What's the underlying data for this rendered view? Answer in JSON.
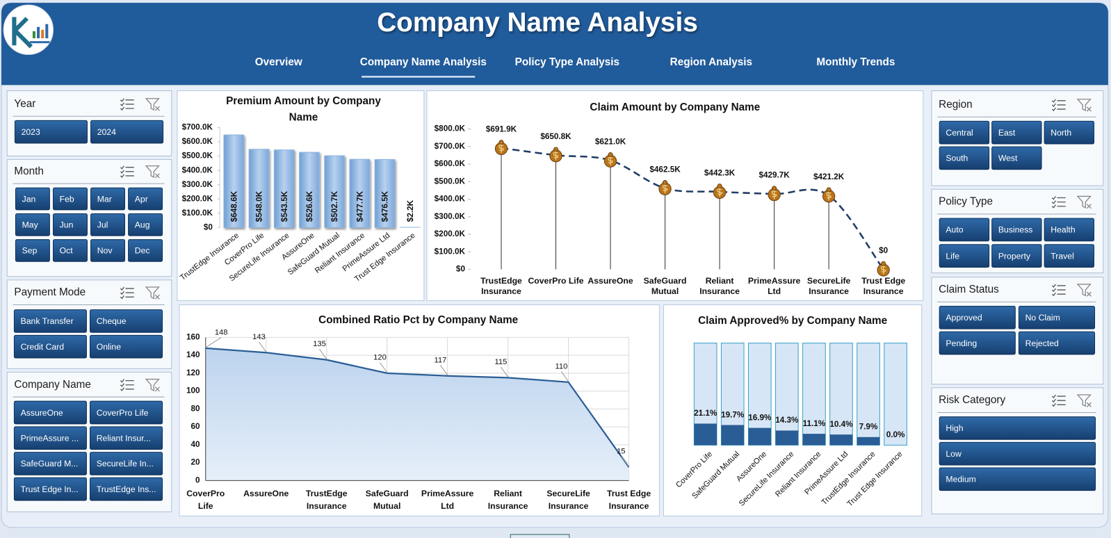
{
  "header": {
    "title": "Company Name Analysis",
    "nav": [
      "Overview",
      "Company Name Analysis",
      "Policy Type Analysis",
      "Region Analysis",
      "Monthly Trends"
    ]
  },
  "slicers": [
    {
      "title": "Year",
      "items": [
        "2023",
        "2024"
      ]
    },
    {
      "title": "Month",
      "items": [
        "Jan",
        "Feb",
        "Mar",
        "Apr",
        "May",
        "Jun",
        "Jul",
        "Aug",
        "Sep",
        "Oct",
        "Nov",
        "Dec"
      ]
    },
    {
      "title": "Payment Mode",
      "items": [
        "Bank Transfer",
        "Cheque",
        "Credit Card",
        "Online"
      ]
    },
    {
      "title": "Company Name",
      "items": [
        "AssureOne",
        "CoverPro Life",
        "PrimeAssure ...",
        "Reliant Insur...",
        "SafeGuard M...",
        "SecureLife In...",
        "Trust Edge In...",
        "TrustEdge Ins..."
      ]
    },
    {
      "title": "Region",
      "items": [
        "Central",
        "East",
        "North",
        "South",
        "West"
      ]
    },
    {
      "title": "Policy Type",
      "items": [
        "Auto",
        "Business",
        "Health",
        "Life",
        "Property",
        "Travel"
      ]
    },
    {
      "title": "Claim Status",
      "items": [
        "Approved",
        "No Claim",
        "Pending",
        "Rejected"
      ]
    },
    {
      "title": "Risk Category",
      "items": [
        "High",
        "Low",
        "Medium"
      ]
    }
  ],
  "chart_data": [
    {
      "type": "bar",
      "title": "Premium Amount by Company Name",
      "categories": [
        "TrustEdge Insurance",
        "CoverPro Life",
        "SecureLife Insurance",
        "AssureOne",
        "SafeGuard Mutual",
        "Reliant Insurance",
        "PrimeAssure Ltd",
        "Trust Edge Insurance"
      ],
      "values": [
        648600,
        548000,
        543500,
        526600,
        502700,
        477700,
        476500,
        2200
      ],
      "value_labels": [
        "$648.6K",
        "$548.0K",
        "$543.5K",
        "$526.6K",
        "$502.7K",
        "$477.7K",
        "$476.5K",
        "$2.2K"
      ],
      "color": "#8db4e2",
      "ylim": [
        0,
        700000
      ],
      "yticks": [
        {
          "value": 0,
          "label": "$0"
        },
        {
          "value": 100000,
          "label": "$100.0K"
        },
        {
          "value": 200000,
          "label": "$200.0K"
        },
        {
          "value": 300000,
          "label": "$300.0K"
        },
        {
          "value": 400000,
          "label": "$400.0K"
        },
        {
          "value": 500000,
          "label": "$500.0K"
        },
        {
          "value": 600000,
          "label": "$600.0K"
        },
        {
          "value": 700000,
          "label": "$700.0K"
        }
      ]
    },
    {
      "type": "line",
      "title": "Claim Amount by Company Name",
      "categories": [
        "TrustEdge Insurance",
        "CoverPro Life",
        "AssureOne",
        "SafeGuard Mutual",
        "Reliant Insurance",
        "PrimeAssure Ltd",
        "SecureLife Insurance",
        "Trust Edge Insurance"
      ],
      "values": [
        691900,
        650800,
        621000,
        462500,
        442300,
        429700,
        421200,
        0
      ],
      "value_labels": [
        "$691.9K",
        "$650.8K",
        "$621.0K",
        "$462.5K",
        "$442.3K",
        "$429.7K",
        "$421.2K",
        "$0"
      ],
      "color": "#1f3d66",
      "marker_color": "#b8741c",
      "ylim": [
        0,
        800000
      ],
      "yticks": [
        {
          "value": 0,
          "label": "$0"
        },
        {
          "value": 100000,
          "label": "$100.0K"
        },
        {
          "value": 200000,
          "label": "$200.0K"
        },
        {
          "value": 300000,
          "label": "$300.0K"
        },
        {
          "value": 400000,
          "label": "$400.0K"
        },
        {
          "value": 500000,
          "label": "$500.0K"
        },
        {
          "value": 600000,
          "label": "$600.0K"
        },
        {
          "value": 700000,
          "label": "$700.0K"
        },
        {
          "value": 800000,
          "label": "$800.0K"
        }
      ]
    },
    {
      "type": "area",
      "title": "Combined Ratio Pct by Company Name",
      "categories": [
        "CoverPro Life",
        "AssureOne",
        "TrustEdge Insurance",
        "SafeGuard Mutual",
        "PrimeAssure Ltd",
        "Reliant Insurance",
        "SecureLife Insurance",
        "Trust Edge Insurance"
      ],
      "values": [
        148,
        143,
        135,
        120,
        117,
        115,
        110,
        15
      ],
      "color": "#2a5d95",
      "ylim": [
        0,
        160
      ],
      "yticks": [
        0,
        20,
        40,
        60,
        80,
        100,
        120,
        140,
        160
      ],
      "grid": true
    },
    {
      "type": "percent-bar",
      "title": "Claim Approved% by Company Name",
      "categories": [
        "CoverPro Life",
        "SafeGuard Mutual",
        "AssureOne",
        "SecureLife Insurance",
        "Reliant Insurance",
        "PrimeAssure Ltd",
        "TrustEdge Insurance",
        "Trust Edge Insurance"
      ],
      "values": [
        21.1,
        19.7,
        16.9,
        14.3,
        11.1,
        10.4,
        7.9,
        0
      ],
      "value_labels": [
        "21.1%",
        "19.7%",
        "16.9%",
        "14.3%",
        "11.1%",
        "10.4%",
        "7.9%",
        "0.0%"
      ],
      "color": "#2a5d95",
      "ylim": [
        0,
        100
      ]
    }
  ]
}
